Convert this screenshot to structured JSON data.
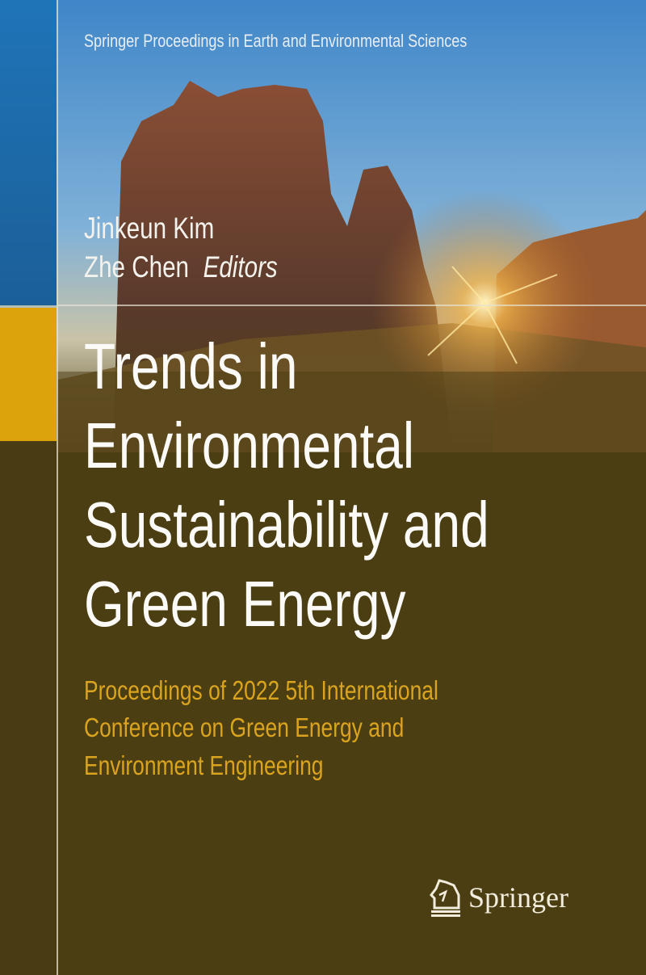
{
  "cover": {
    "series": "Springer Proceedings in Earth and Environmental Sciences",
    "authors": [
      "Jinkeun Kim",
      "Zhe Chen"
    ],
    "editors_label": "Editors",
    "title_lines": [
      "Trends in",
      "Environmental",
      "Sustainability and",
      "Green Energy"
    ],
    "subtitle_lines": [
      "Proceedings of 2022 5th International",
      "Conference on Green Energy and",
      "Environment Engineering"
    ],
    "publisher": "Springer",
    "publisher_icon": "springer-horse-logo-icon"
  },
  "colors": {
    "background": "#4c3e13",
    "accent_yellow": "#dca40a",
    "accent_blue": "#1f74b8",
    "subtitle": "#dba41f"
  }
}
